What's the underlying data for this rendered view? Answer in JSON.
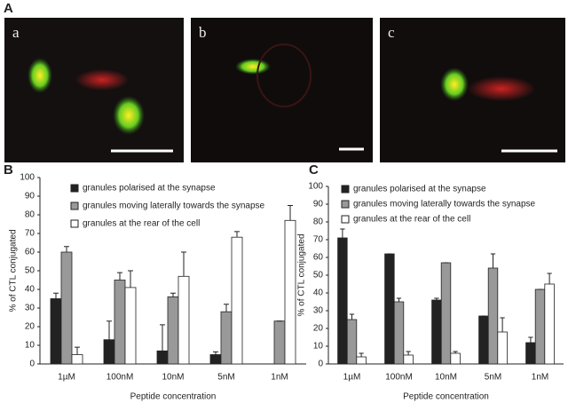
{
  "panel_a": {
    "label": "A",
    "images": [
      "a",
      "b",
      "c"
    ]
  },
  "chart_data": [
    {
      "type": "bar",
      "panel": "B",
      "ylabel": "% of CTL conjugated",
      "xlabel": "Peptide concentration",
      "categories": [
        "1µM",
        "100nM",
        "10nM",
        "5nM",
        "1nM"
      ],
      "ylim": [
        0,
        100
      ],
      "yticks": [
        0,
        10,
        20,
        30,
        40,
        50,
        60,
        70,
        80,
        90,
        100
      ],
      "series": [
        {
          "name": "granules polarised at the synapse",
          "color": "#222222",
          "values": [
            35,
            13,
            7,
            5,
            0
          ],
          "errors": [
            3,
            10,
            14,
            1.5,
            0
          ]
        },
        {
          "name": "granules moving laterally towards the synapse",
          "color": "#999999",
          "values": [
            60,
            45,
            36,
            28,
            23
          ],
          "errors": [
            3,
            4,
            2,
            4,
            0
          ]
        },
        {
          "name": "granules at the rear of the cell",
          "color": "#ffffff",
          "values": [
            5,
            41,
            47,
            68,
            77
          ],
          "errors": [
            4,
            9,
            13,
            3,
            8
          ]
        }
      ]
    },
    {
      "type": "bar",
      "panel": "C",
      "ylabel": "% of CTL conjugated",
      "xlabel": "Peptide concentration",
      "categories": [
        "1µM",
        "100nM",
        "10nM",
        "5nM",
        "1nM"
      ],
      "ylim": [
        0,
        100
      ],
      "yticks": [
        0,
        10,
        20,
        30,
        40,
        50,
        60,
        70,
        80,
        90,
        100
      ],
      "series": [
        {
          "name": "granules polarised at the synapse",
          "color": "#222222",
          "values": [
            71,
            62,
            36,
            27,
            12
          ],
          "errors": [
            5,
            0,
            1,
            0,
            3
          ]
        },
        {
          "name": "granules moving laterally towards the synapse",
          "color": "#999999",
          "values": [
            25,
            35,
            57,
            54,
            42
          ],
          "errors": [
            3,
            2,
            0,
            8,
            0
          ]
        },
        {
          "name": "granules at the rear of the cell",
          "color": "#ffffff",
          "values": [
            4,
            5,
            6,
            18,
            45
          ],
          "errors": [
            2,
            2,
            1,
            8,
            6
          ]
        }
      ]
    }
  ]
}
